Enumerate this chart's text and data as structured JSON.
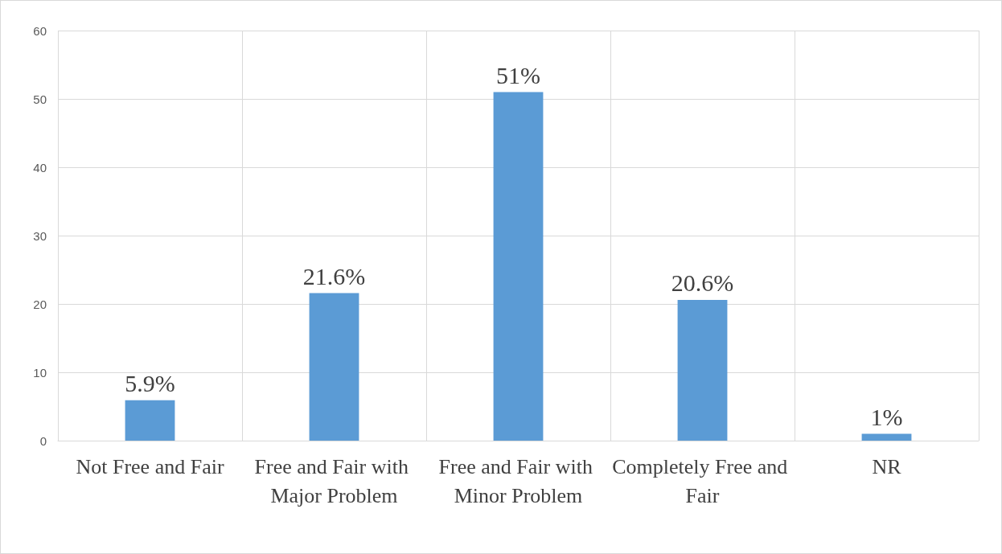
{
  "chart_data": {
    "type": "bar",
    "categories": [
      "Not Free and Fair",
      "Free and Fair with Major Problem",
      "Free and Fair with Minor Problem",
      "Completely Free and Fair",
      "NR"
    ],
    "values": [
      5.9,
      21.6,
      51,
      20.6,
      1
    ],
    "value_labels": [
      "5.9%",
      "21.6%",
      "51%",
      "20.6%",
      "1%"
    ],
    "color": "#5b9bd5",
    "ylim": [
      0,
      60
    ],
    "yticks": [
      0,
      10,
      20,
      30,
      40,
      50,
      60
    ],
    "grid": true
  }
}
